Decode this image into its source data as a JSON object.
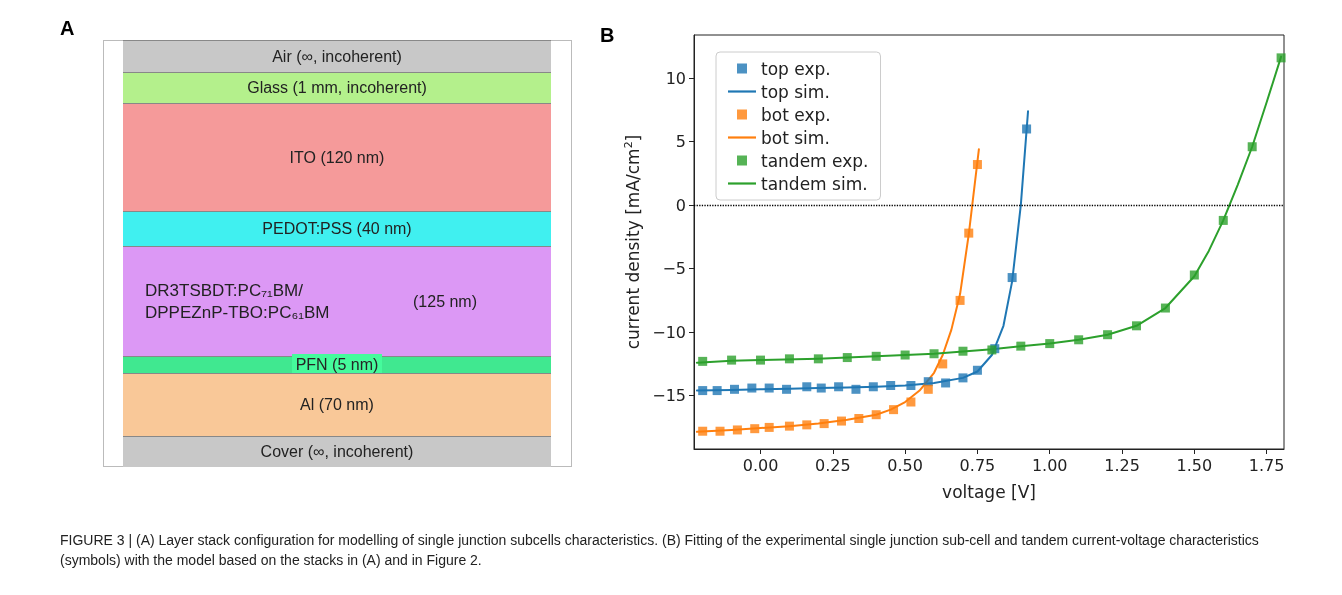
{
  "chart_data": [
    {
      "type": "other",
      "title": "A",
      "annotations": [
        "Air (∞, incoherent)",
        "Glass (1 mm, incoherent)",
        "ITO (120 nm)",
        "PEDOT:PSS (40 nm)",
        "DR3TSBDT:PC₇₁BM/\nDPPEZnP-TBO:PC₆₁BM",
        "(125 nm)",
        "PFN (5 nm)",
        "Al (70 nm)",
        "Cover (∞, incoherent)"
      ],
      "colors": [
        "#c8c8c8",
        "#b4f08c",
        "#f59a9a",
        "#40f0f0",
        "#dc98f5",
        "#40e890",
        "#f9c898",
        "#c8c8c8"
      ]
    },
    {
      "type": "line",
      "title": "B",
      "xlabel": "voltage [V]",
      "ylabel": "current density [mA/cm$^{2}$]",
      "xlim": [
        -0.23,
        1.81
      ],
      "ylim": [
        -19.2,
        13.4
      ],
      "xticks": [
        {
          "value": 0,
          "label": "0.00"
        },
        {
          "value": 0.25,
          "label": "0.25"
        },
        {
          "value": 0.5,
          "label": "0.50"
        },
        {
          "value": 0.75,
          "label": "0.75"
        },
        {
          "value": 1,
          "label": "1.00"
        },
        {
          "value": 1.25,
          "label": "1.25"
        },
        {
          "value": 1.5,
          "label": "1.50"
        },
        {
          "value": 1.75,
          "label": "1.75"
        }
      ],
      "yticks": [
        {
          "value": -15,
          "label": "−15"
        },
        {
          "value": -10,
          "label": "−10"
        },
        {
          "value": -5,
          "label": "−5"
        },
        0,
        5,
        10
      ],
      "grid": false,
      "legend": "top left",
      "annotations": [
        "FIGURE 3 | (A) Layer stack configuration for modelling of single junction subcells characteristics. (B) Fitting of the experimental single junction sub-cell and tandem current-voltage characteristics (symbols) with the model based on the stacks in (A) and in Figure 2."
      ],
      "ref_lines": [
        {
          "axis": "y",
          "value": 0,
          "color": "#000000",
          "line_style": "dotted"
        }
      ],
      "series": [
        {
          "name": "top exp.",
          "type": "scatter",
          "marker": "square",
          "color": "#1f77b4",
          "x": [
            -0.2,
            -0.15,
            -0.09,
            -0.03,
            0.03,
            0.09,
            0.16,
            0.21,
            0.27,
            0.33,
            0.39,
            0.45,
            0.52,
            0.58,
            0.64,
            0.7,
            0.75,
            0.81,
            0.87,
            0.92
          ],
          "values": [
            -14.6,
            -14.6,
            -14.5,
            -14.4,
            -14.4,
            -14.5,
            -14.3,
            -14.4,
            -14.3,
            -14.5,
            -14.3,
            -14.2,
            -14.2,
            -13.9,
            -14.0,
            -13.6,
            -13.0,
            -11.3,
            -5.7,
            6.0
          ]
        },
        {
          "name": "top sim.",
          "type": "line",
          "marker": "none",
          "color": "#1f77b4",
          "x": [
            -0.22,
            -0.1,
            0,
            0.1,
            0.2,
            0.3,
            0.4,
            0.5,
            0.6,
            0.7,
            0.75,
            0.8,
            0.84,
            0.87,
            0.9,
            0.925
          ],
          "values": [
            -14.6,
            -14.55,
            -14.5,
            -14.45,
            -14.4,
            -14.35,
            -14.3,
            -14.2,
            -14.0,
            -13.6,
            -13.1,
            -11.8,
            -9.5,
            -6.0,
            0.0,
            7.4
          ]
        },
        {
          "name": "bot exp.",
          "type": "scatter",
          "marker": "square",
          "color": "#ff7f0e",
          "x": [
            -0.2,
            -0.14,
            -0.08,
            -0.02,
            0.03,
            0.1,
            0.16,
            0.22,
            0.28,
            0.34,
            0.4,
            0.46,
            0.52,
            0.58,
            0.63,
            0.69,
            0.72,
            0.75
          ],
          "values": [
            -17.8,
            -17.8,
            -17.7,
            -17.6,
            -17.5,
            -17.4,
            -17.3,
            -17.2,
            -17.0,
            -16.8,
            -16.5,
            -16.1,
            -15.5,
            -14.5,
            -12.5,
            -7.5,
            -2.2,
            3.2
          ]
        },
        {
          "name": "bot sim.",
          "type": "line",
          "marker": "none",
          "color": "#ff7f0e",
          "x": [
            -0.22,
            -0.1,
            0,
            0.1,
            0.2,
            0.3,
            0.4,
            0.45,
            0.5,
            0.55,
            0.6,
            0.63,
            0.66,
            0.69,
            0.72,
            0.755
          ],
          "values": [
            -17.85,
            -17.7,
            -17.55,
            -17.4,
            -17.2,
            -16.9,
            -16.5,
            -16.1,
            -15.5,
            -14.6,
            -13.2,
            -11.8,
            -9.8,
            -7.0,
            -2.3,
            4.4
          ]
        },
        {
          "name": "tandem exp.",
          "type": "scatter",
          "marker": "square",
          "color": "#2ca02c",
          "x": [
            -0.2,
            -0.1,
            0,
            0.1,
            0.2,
            0.3,
            0.4,
            0.5,
            0.6,
            0.7,
            0.8,
            0.9,
            1.0,
            1.1,
            1.2,
            1.3,
            1.4,
            1.5,
            1.6,
            1.7,
            1.8
          ],
          "values": [
            -12.3,
            -12.2,
            -12.2,
            -12.1,
            -12.1,
            -12.0,
            -11.9,
            -11.8,
            -11.7,
            -11.5,
            -11.4,
            -11.1,
            -10.9,
            -10.6,
            -10.2,
            -9.5,
            -8.1,
            -5.5,
            -1.2,
            4.6,
            11.6
          ]
        },
        {
          "name": "tandem sim.",
          "type": "line",
          "marker": "none",
          "color": "#2ca02c",
          "x": [
            -0.22,
            -0.1,
            0,
            0.2,
            0.4,
            0.6,
            0.8,
            0.9,
            1.0,
            1.1,
            1.2,
            1.3,
            1.4,
            1.5,
            1.55,
            1.6,
            1.65,
            1.7,
            1.75,
            1.8
          ],
          "values": [
            -12.4,
            -12.25,
            -12.2,
            -12.1,
            -11.9,
            -11.7,
            -11.35,
            -11.1,
            -10.9,
            -10.6,
            -10.2,
            -9.5,
            -8.1,
            -5.6,
            -3.6,
            -1.2,
            1.6,
            4.6,
            8.1,
            11.7
          ]
        }
      ]
    }
  ]
}
